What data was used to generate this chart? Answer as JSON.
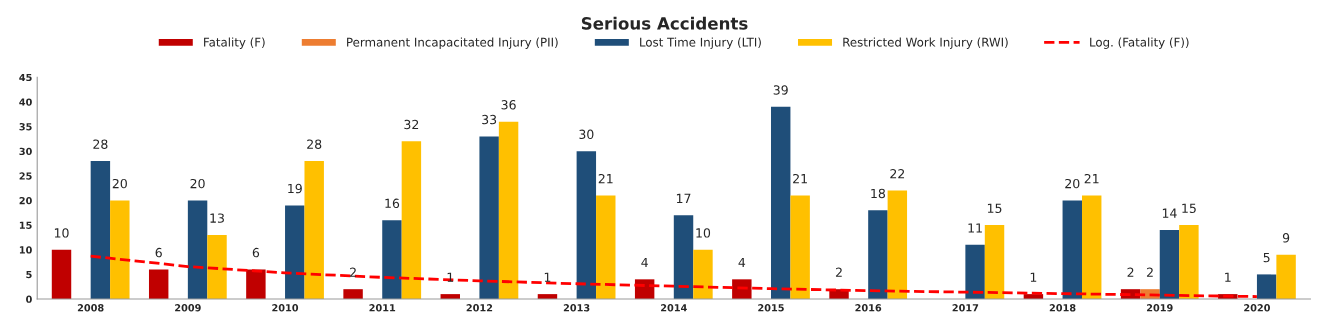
{
  "chart_data": {
    "type": "bar",
    "title": "Serious Accidents",
    "categories": [
      "2008",
      "2009",
      "2010",
      "2011",
      "2012",
      "2013",
      "2014",
      "2015",
      "2016",
      "2017",
      "2018",
      "2019",
      "2020"
    ],
    "series": [
      {
        "name": "Fatality (F)",
        "color": "#c00000",
        "values": [
          10,
          6,
          6,
          2,
          1,
          1,
          4,
          4,
          2,
          null,
          1,
          2,
          1
        ],
        "value_labels": [
          "10",
          "6",
          "6",
          "2",
          "1",
          "1",
          "4",
          "4",
          "2",
          null,
          "1",
          "2",
          "1"
        ]
      },
      {
        "name": "Permanent Incapacitated Injury (PII)",
        "color": "#ed7d31",
        "values": [
          null,
          null,
          null,
          null,
          null,
          null,
          null,
          null,
          null,
          null,
          null,
          2,
          null
        ],
        "value_labels": [
          null,
          null,
          null,
          null,
          null,
          null,
          null,
          null,
          null,
          null,
          null,
          "2",
          null
        ]
      },
      {
        "name": "Lost Time Injury (LTI)",
        "color": "#1f4e79",
        "values": [
          28,
          20,
          19,
          16,
          33,
          30,
          17,
          39,
          18,
          11,
          20,
          14,
          5
        ],
        "value_labels": [
          "28",
          "20",
          "19",
          "16",
          "33",
          "30",
          "17",
          "39",
          "18",
          "11",
          "20",
          "14",
          "5"
        ]
      },
      {
        "name": "Restricted Work Injury (RWI)",
        "color": "#ffc000",
        "values": [
          20,
          13,
          28,
          32,
          36,
          21,
          10,
          21,
          22,
          15,
          21,
          15,
          9
        ],
        "value_labels": [
          "20",
          "13",
          "28",
          "32",
          "36",
          "21",
          "10",
          "21",
          "22",
          "15",
          "21",
          "15",
          "9"
        ]
      },
      {
        "name": "Log. (Fatality (F))",
        "type": "line",
        "color": "#ff0000",
        "line_style": "dashed",
        "values": [
          8.7,
          6.6,
          5.3,
          4.4,
          3.7,
          3.1,
          2.6,
          2.1,
          1.7,
          1.4,
          1.1,
          0.8,
          0.5
        ]
      }
    ],
    "ylim": [
      0,
      45
    ],
    "yticks": [
      0,
      5,
      10,
      15,
      20,
      25,
      30,
      35,
      40,
      45
    ],
    "grid": false,
    "legend": "top"
  }
}
